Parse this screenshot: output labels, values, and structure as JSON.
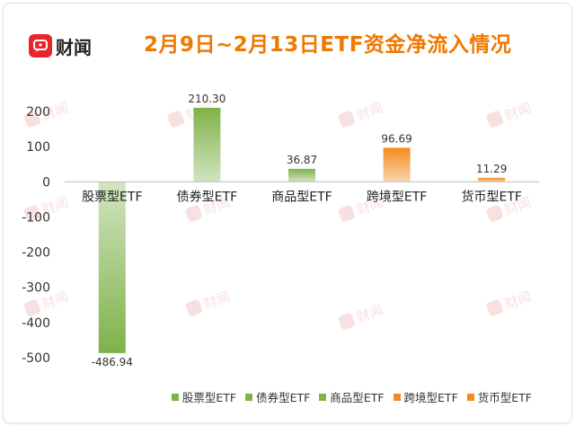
{
  "brand": {
    "name": "财闻"
  },
  "title": "2月9日~2月13日ETF资金净流入情况",
  "chart_data": {
    "type": "bar",
    "title": "2月9日~2月13日ETF资金净流入情况",
    "categories": [
      "股票型ETF",
      "债券型ETF",
      "商品型ETF",
      "跨境型ETF",
      "货币型ETF"
    ],
    "values": [
      -486.94,
      210.3,
      36.87,
      96.69,
      11.29
    ],
    "value_labels": [
      "-486.94",
      "210.30",
      "36.87",
      "96.69",
      "11.29"
    ],
    "colors": [
      "#7fb24a",
      "#7fb24a",
      "#7fb24a",
      "#f28a1e",
      "#f28a1e"
    ],
    "ylim": [
      -500,
      200
    ],
    "yticks": [
      200,
      100,
      0,
      -100,
      -200,
      -300,
      -400,
      -500
    ],
    "ytick_labels": [
      "200",
      "100",
      "0",
      "-100",
      "-200",
      "-300",
      "-400",
      "-500"
    ],
    "grid": false,
    "legend_position": "bottom-right",
    "xlabel": "",
    "ylabel": ""
  },
  "legend": [
    {
      "label": "股票型ETF",
      "color": "#7fb24a"
    },
    {
      "label": "债券型ETF",
      "color": "#7fb24a"
    },
    {
      "label": "商品型ETF",
      "color": "#7fb24a"
    },
    {
      "label": "跨境型ETF",
      "color": "#f28a1e"
    },
    {
      "label": "货币型ETF",
      "color": "#f28a1e"
    }
  ],
  "watermark": {
    "text": "财闻",
    "color": "#f3c8c8"
  }
}
